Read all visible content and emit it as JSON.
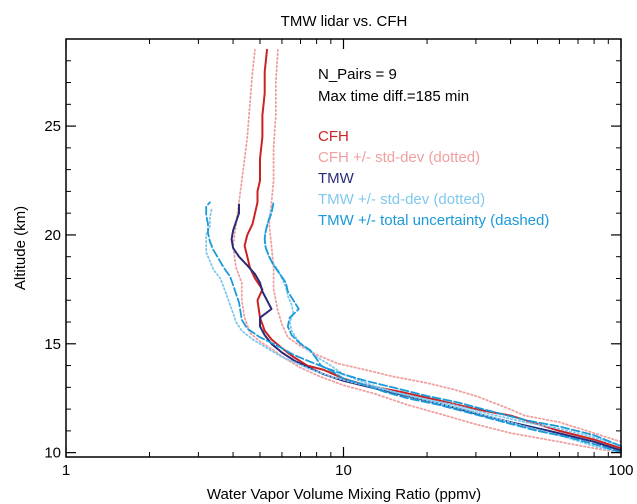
{
  "chart_data": {
    "type": "line",
    "title": "TMW lidar vs. CFH",
    "xlabel": "Water Vapor Volume Mixing Ratio (ppmv)",
    "ylabel": "Altitude (km)",
    "xscale": "log",
    "xlim": [
      1,
      100
    ],
    "ylim": [
      9.8,
      29
    ],
    "x_ticks": [
      {
        "value": 1,
        "label": "1"
      },
      {
        "value": 10,
        "label": "10"
      },
      {
        "value": 100,
        "label": "100"
      }
    ],
    "y_ticks": [
      {
        "value": 10,
        "label": "10"
      },
      {
        "value": 15,
        "label": "15"
      },
      {
        "value": 20,
        "label": "20"
      },
      {
        "value": 25,
        "label": "25"
      }
    ],
    "grid": false,
    "annotations": [
      "N_Pairs = 9",
      "Max time diff.=185 min"
    ],
    "legend": {
      "placement": "upper-right",
      "entries": [
        {
          "text": "CFH",
          "color": "#cc2222"
        },
        {
          "text": "CFH +/- std-dev (dotted)",
          "color": "#f0a0a0"
        },
        {
          "text": "TMW",
          "color": "#2a2a7a"
        },
        {
          "text": "TMW +/- std-dev (dotted)",
          "color": "#80c8ee"
        },
        {
          "text": "TMW +/- total uncertainty (dashed)",
          "color": "#1a9ad8"
        }
      ]
    },
    "series": [
      {
        "name": "CFH",
        "color": "#cc2222",
        "style": "solid",
        "points": [
          [
            100,
            10.2
          ],
          [
            80,
            10.6
          ],
          [
            60,
            11.0
          ],
          [
            40,
            11.7
          ],
          [
            30,
            12.0
          ],
          [
            22,
            12.4
          ],
          [
            16,
            12.8
          ],
          [
            12,
            13.1
          ],
          [
            10,
            13.4
          ],
          [
            8.5,
            13.8
          ],
          [
            7.4,
            14.0
          ],
          [
            6.6,
            14.4
          ],
          [
            6.0,
            14.8
          ],
          [
            5.5,
            15.2
          ],
          [
            5.2,
            15.6
          ],
          [
            5.0,
            16.2
          ],
          [
            4.9,
            17.0
          ],
          [
            5.1,
            17.5
          ],
          [
            4.8,
            18.0
          ],
          [
            4.6,
            18.5
          ],
          [
            4.5,
            19.0
          ],
          [
            4.4,
            19.5
          ],
          [
            4.5,
            20.0
          ],
          [
            4.7,
            20.5
          ],
          [
            4.8,
            21.0
          ],
          [
            4.9,
            21.5
          ],
          [
            4.9,
            22.0
          ],
          [
            5.0,
            22.5
          ],
          [
            5.0,
            23.5
          ],
          [
            5.1,
            24.5
          ],
          [
            5.1,
            25.5
          ],
          [
            5.2,
            26.5
          ],
          [
            5.2,
            27.5
          ],
          [
            5.3,
            28.5
          ]
        ]
      },
      {
        "name": "CFH + std-dev",
        "color": "#f0a0a0",
        "style": "dotted",
        "points": [
          [
            100,
            10.5
          ],
          [
            80,
            10.9
          ],
          [
            60,
            11.4
          ],
          [
            45,
            11.7
          ],
          [
            38,
            12.1
          ],
          [
            30,
            12.6
          ],
          [
            25,
            12.9
          ],
          [
            20,
            13.2
          ],
          [
            15,
            13.5
          ],
          [
            12,
            13.8
          ],
          [
            9.5,
            14.1
          ],
          [
            8.0,
            14.5
          ],
          [
            7.0,
            14.9
          ],
          [
            6.3,
            15.3
          ],
          [
            6.0,
            15.9
          ],
          [
            5.8,
            16.5
          ],
          [
            5.6,
            17.5
          ],
          [
            5.6,
            18.5
          ],
          [
            5.5,
            19.5
          ],
          [
            5.4,
            20.5
          ],
          [
            5.5,
            21.5
          ],
          [
            5.6,
            22.5
          ],
          [
            5.6,
            24.0
          ],
          [
            5.7,
            25.5
          ],
          [
            5.7,
            27.0
          ],
          [
            5.8,
            28.5
          ]
        ]
      },
      {
        "name": "CFH - std-dev",
        "color": "#f0a0a0",
        "style": "dotted",
        "points": [
          [
            100,
            10.0
          ],
          [
            80,
            10.2
          ],
          [
            60,
            10.5
          ],
          [
            40,
            10.9
          ],
          [
            30,
            11.3
          ],
          [
            22,
            11.8
          ],
          [
            17,
            12.2
          ],
          [
            13,
            12.7
          ],
          [
            10,
            13.1
          ],
          [
            8.2,
            13.5
          ],
          [
            7.0,
            13.9
          ],
          [
            6.2,
            14.3
          ],
          [
            5.6,
            14.7
          ],
          [
            5.0,
            15.1
          ],
          [
            4.6,
            15.5
          ],
          [
            4.4,
            16.2
          ],
          [
            4.3,
            17.0
          ],
          [
            4.3,
            17.8
          ],
          [
            4.1,
            18.5
          ],
          [
            4.0,
            19.5
          ],
          [
            4.1,
            20.5
          ],
          [
            4.2,
            21.5
          ],
          [
            4.3,
            22.5
          ],
          [
            4.4,
            23.5
          ],
          [
            4.5,
            24.5
          ],
          [
            4.6,
            26.0
          ],
          [
            4.7,
            27.5
          ],
          [
            4.8,
            28.5
          ]
        ]
      },
      {
        "name": "TMW",
        "color": "#2a2a7a",
        "style": "solid",
        "points": [
          [
            100,
            10.1
          ],
          [
            80,
            10.5
          ],
          [
            55,
            11.0
          ],
          [
            40,
            11.4
          ],
          [
            30,
            11.8
          ],
          [
            23,
            12.2
          ],
          [
            17,
            12.6
          ],
          [
            12.5,
            13.0
          ],
          [
            10,
            13.3
          ],
          [
            8.5,
            13.6
          ],
          [
            7.5,
            13.9
          ],
          [
            6.7,
            14.2
          ],
          [
            6.0,
            14.6
          ],
          [
            5.5,
            15.0
          ],
          [
            5.2,
            15.4
          ],
          [
            5.0,
            15.8
          ],
          [
            5.0,
            16.2
          ],
          [
            5.5,
            16.6
          ],
          [
            5.3,
            17.0
          ],
          [
            5.1,
            17.4
          ],
          [
            5.0,
            17.8
          ],
          [
            4.8,
            18.2
          ],
          [
            4.5,
            18.6
          ],
          [
            4.2,
            19.0
          ],
          [
            4.0,
            19.4
          ],
          [
            3.95,
            19.8
          ],
          [
            4.0,
            20.2
          ],
          [
            4.1,
            20.6
          ],
          [
            4.2,
            21.0
          ],
          [
            4.2,
            21.4
          ]
        ]
      },
      {
        "name": "TMW + std-dev",
        "color": "#80c8ee",
        "style": "dotted",
        "points": [
          [
            100,
            10.0
          ],
          [
            80,
            10.3
          ],
          [
            60,
            10.8
          ],
          [
            45,
            11.2
          ],
          [
            35,
            11.6
          ],
          [
            27,
            12.0
          ],
          [
            20,
            12.4
          ],
          [
            15,
            12.8
          ],
          [
            12,
            13.2
          ],
          [
            10,
            13.6
          ],
          [
            9,
            14.0
          ],
          [
            8,
            14.4
          ],
          [
            7.3,
            14.8
          ],
          [
            6.8,
            15.2
          ],
          [
            6.5,
            15.6
          ],
          [
            6.4,
            16.0
          ],
          [
            6.6,
            16.4
          ],
          [
            6.5,
            16.8
          ],
          [
            6.3,
            17.2
          ],
          [
            6.2,
            17.6
          ],
          [
            6.0,
            18.0
          ],
          [
            5.8,
            18.4
          ],
          [
            5.5,
            18.8
          ],
          [
            5.3,
            19.2
          ],
          [
            5.2,
            19.6
          ],
          [
            5.2,
            20.0
          ],
          [
            5.3,
            20.4
          ],
          [
            5.4,
            20.8
          ],
          [
            5.5,
            21.2
          ]
        ]
      },
      {
        "name": "TMW - std-dev",
        "color": "#80c8ee",
        "style": "dotted",
        "points": [
          [
            100,
            10.3
          ],
          [
            80,
            10.7
          ],
          [
            60,
            11.1
          ],
          [
            45,
            11.4
          ],
          [
            33,
            11.8
          ],
          [
            25,
            12.2
          ],
          [
            19,
            12.5
          ],
          [
            14,
            12.9
          ],
          [
            11,
            13.2
          ],
          [
            9,
            13.5
          ],
          [
            7.7,
            13.8
          ],
          [
            6.8,
            14.1
          ],
          [
            6.0,
            14.4
          ],
          [
            5.3,
            14.8
          ],
          [
            4.7,
            15.2
          ],
          [
            4.3,
            15.6
          ],
          [
            4.1,
            16.0
          ],
          [
            4.0,
            16.4
          ],
          [
            3.9,
            16.8
          ],
          [
            3.8,
            17.2
          ],
          [
            3.7,
            17.6
          ],
          [
            3.6,
            18.0
          ],
          [
            3.4,
            18.4
          ],
          [
            3.3,
            18.8
          ],
          [
            3.2,
            19.2
          ],
          [
            3.2,
            19.6
          ],
          [
            3.2,
            20.0
          ],
          [
            3.3,
            20.4
          ],
          [
            3.3,
            20.8
          ],
          [
            3.35,
            21.2
          ]
        ]
      },
      {
        "name": "TMW + total uncertainty",
        "color": "#1a9ad8",
        "style": "dashed",
        "points": [
          [
            100,
            10.0
          ],
          [
            85,
            10.3
          ],
          [
            65,
            10.7
          ],
          [
            50,
            11.0
          ],
          [
            38,
            11.4
          ],
          [
            29,
            11.8
          ],
          [
            22,
            12.2
          ],
          [
            17,
            12.5
          ],
          [
            14,
            12.8
          ],
          [
            12,
            13.1
          ],
          [
            10,
            13.4
          ],
          [
            9.2,
            13.7
          ],
          [
            8.3,
            14.0
          ],
          [
            8.0,
            14.3
          ],
          [
            7.6,
            14.7
          ],
          [
            7.0,
            15.0
          ],
          [
            6.5,
            15.4
          ],
          [
            6.3,
            15.8
          ],
          [
            6.4,
            16.2
          ],
          [
            6.9,
            16.6
          ],
          [
            6.6,
            17.0
          ],
          [
            6.3,
            17.4
          ],
          [
            6.2,
            17.8
          ],
          [
            5.9,
            18.2
          ],
          [
            5.6,
            18.6
          ],
          [
            5.4,
            19.0
          ],
          [
            5.25,
            19.4
          ],
          [
            5.2,
            19.8
          ],
          [
            5.25,
            20.2
          ],
          [
            5.35,
            20.6
          ],
          [
            5.5,
            21.0
          ],
          [
            5.6,
            21.5
          ]
        ]
      },
      {
        "name": "TMW - total uncertainty",
        "color": "#1a9ad8",
        "style": "dashed",
        "points": [
          [
            100,
            10.3
          ],
          [
            80,
            10.8
          ],
          [
            60,
            11.2
          ],
          [
            45,
            11.5
          ],
          [
            34,
            11.9
          ],
          [
            26,
            12.3
          ],
          [
            20,
            12.6
          ],
          [
            15,
            13.0
          ],
          [
            12,
            13.3
          ],
          [
            10,
            13.6
          ],
          [
            8.6,
            13.9
          ],
          [
            7.5,
            14.2
          ],
          [
            6.6,
            14.5
          ],
          [
            5.8,
            14.9
          ],
          [
            5.0,
            15.3
          ],
          [
            4.5,
            15.7
          ],
          [
            4.3,
            16.1
          ],
          [
            4.25,
            16.5
          ],
          [
            4.2,
            16.9
          ],
          [
            4.1,
            17.3
          ],
          [
            4.0,
            17.7
          ],
          [
            3.9,
            18.1
          ],
          [
            3.7,
            18.5
          ],
          [
            3.55,
            18.9
          ],
          [
            3.4,
            19.3
          ],
          [
            3.3,
            19.7
          ],
          [
            3.25,
            20.1
          ],
          [
            3.25,
            20.5
          ],
          [
            3.2,
            20.9
          ],
          [
            3.2,
            21.3
          ],
          [
            3.3,
            21.5
          ]
        ]
      }
    ]
  }
}
